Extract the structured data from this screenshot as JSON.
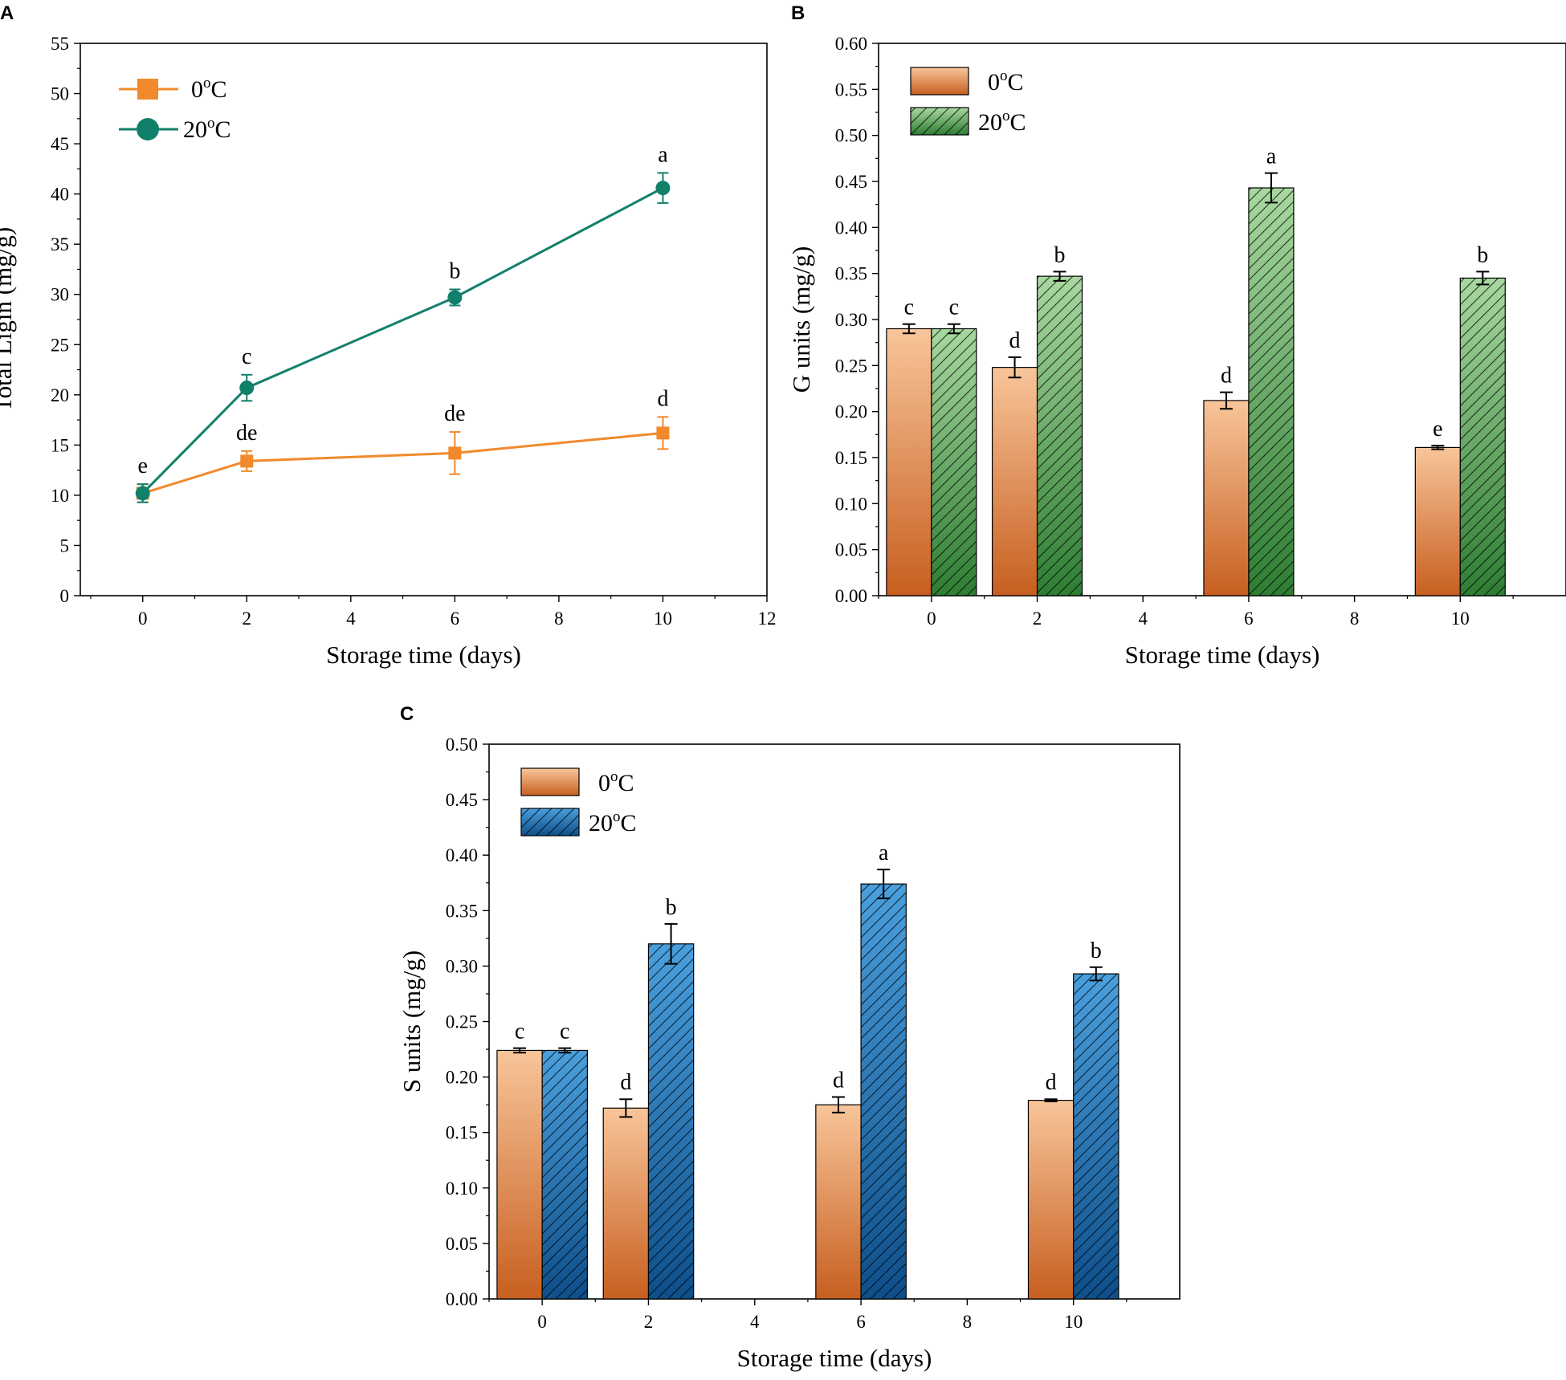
{
  "series_colors": {
    "orange_line": "#F08A2C",
    "teal_line": "#11806B",
    "bar_orange_top": "#F8C59A",
    "bar_orange_bottom": "#C75F20",
    "bar_green_top": "#A8D8A0",
    "bar_green_bottom": "#2E7D32",
    "bar_blue_top": "#4A9FDD",
    "bar_blue_bottom": "#0E4F8A"
  },
  "chart_data": [
    {
      "panel": "A",
      "type": "line",
      "xlabel": "Storage time (days)",
      "ylabel": "Total Ligin (mg/g)",
      "xlim": [
        -1.2,
        12
      ],
      "ylim": [
        0,
        55
      ],
      "xticks": [
        0,
        2,
        4,
        6,
        8,
        10,
        12
      ],
      "yticks": [
        0,
        5,
        10,
        15,
        20,
        25,
        30,
        35,
        40,
        45,
        50,
        55
      ],
      "ytick_labels": [
        "0",
        "5",
        "10",
        "15",
        "20",
        "25",
        "30",
        "35",
        "40",
        "45",
        "50",
        "55"
      ],
      "legend_position": "top-left",
      "series": [
        {
          "name": "0°C",
          "name_base": "0",
          "name_sup": "o",
          "name_suffix": "C",
          "marker": "square",
          "color": "#F08A2C",
          "x": [
            0,
            2,
            6,
            10
          ],
          "values": [
            10.2,
            13.4,
            14.2,
            16.2
          ],
          "errors": [
            0.9,
            1.0,
            2.1,
            1.6
          ],
          "letters": [
            "",
            "de",
            "de",
            "d"
          ]
        },
        {
          "name": "20°C",
          "name_base": "20",
          "name_sup": "o",
          "name_suffix": "C",
          "marker": "circle",
          "color": "#11806B",
          "x": [
            0,
            2,
            6,
            10
          ],
          "values": [
            10.2,
            20.7,
            29.7,
            40.6
          ],
          "errors": [
            0.9,
            1.3,
            0.8,
            1.5
          ],
          "letters": [
            "e",
            "c",
            "b",
            "a"
          ]
        }
      ]
    },
    {
      "panel": "B",
      "type": "bar",
      "xlabel": "Storage time (days)",
      "ylabel": "G units (mg/g)",
      "xlim": [
        -1,
        12
      ],
      "ylim": [
        0,
        0.6
      ],
      "xticks": [
        0,
        2,
        4,
        6,
        8,
        10
      ],
      "yticks": [
        0,
        0.05,
        0.1,
        0.15,
        0.2,
        0.25,
        0.3,
        0.35,
        0.4,
        0.45,
        0.5,
        0.55,
        0.6
      ],
      "ytick_labels": [
        "0.00",
        "0.05",
        "0.10",
        "0.15",
        "0.20",
        "0.25",
        "0.30",
        "0.35",
        "0.40",
        "0.45",
        "0.50",
        "0.55",
        "0.60"
      ],
      "legend_position": "top-left",
      "categories": [
        0,
        2,
        6,
        10
      ],
      "series": [
        {
          "name": "0°C",
          "name_base": "0",
          "name_sup": "o",
          "name_suffix": "C",
          "fill": "orange",
          "values": [
            0.29,
            0.248,
            0.212,
            0.161
          ],
          "errors": [
            0.005,
            0.011,
            0.009,
            0.002
          ],
          "letters": [
            "c",
            "d",
            "d",
            "e"
          ]
        },
        {
          "name": "20°C",
          "name_base": "20",
          "name_sup": "o",
          "name_suffix": "C",
          "fill": "green",
          "hatched": true,
          "values": [
            0.29,
            0.347,
            0.443,
            0.345
          ],
          "errors": [
            0.005,
            0.005,
            0.016,
            0.007
          ],
          "letters": [
            "c",
            "b",
            "a",
            "b"
          ]
        }
      ]
    },
    {
      "panel": "C",
      "type": "bar",
      "xlabel": "Storage time (days)",
      "ylabel": "S units (mg/g)",
      "xlim": [
        -1,
        12
      ],
      "ylim": [
        0,
        0.5
      ],
      "xticks": [
        0,
        2,
        4,
        6,
        8,
        10
      ],
      "yticks": [
        0,
        0.05,
        0.1,
        0.15,
        0.2,
        0.25,
        0.3,
        0.35,
        0.4,
        0.45,
        0.5
      ],
      "ytick_labels": [
        "0.00",
        "0.05",
        "0.10",
        "0.15",
        "0.20",
        "0.25",
        "0.30",
        "0.35",
        "0.40",
        "0.45",
        "0.50"
      ],
      "legend_position": "top-left",
      "categories": [
        0,
        2,
        6,
        10
      ],
      "series": [
        {
          "name": "0°C",
          "name_base": "0",
          "name_sup": "o",
          "name_suffix": "C",
          "fill": "orange",
          "values": [
            0.224,
            0.172,
            0.175,
            0.179
          ],
          "errors": [
            0.002,
            0.008,
            0.007,
            0.001
          ],
          "letters": [
            "c",
            "d",
            "d",
            "d"
          ]
        },
        {
          "name": "20°C",
          "name_base": "20",
          "name_sup": "o",
          "name_suffix": "C",
          "fill": "blue",
          "hatched": true,
          "values": [
            0.224,
            0.32,
            0.374,
            0.293
          ],
          "errors": [
            0.002,
            0.018,
            0.013,
            0.006
          ],
          "letters": [
            "c",
            "b",
            "a",
            "b"
          ]
        }
      ]
    }
  ]
}
